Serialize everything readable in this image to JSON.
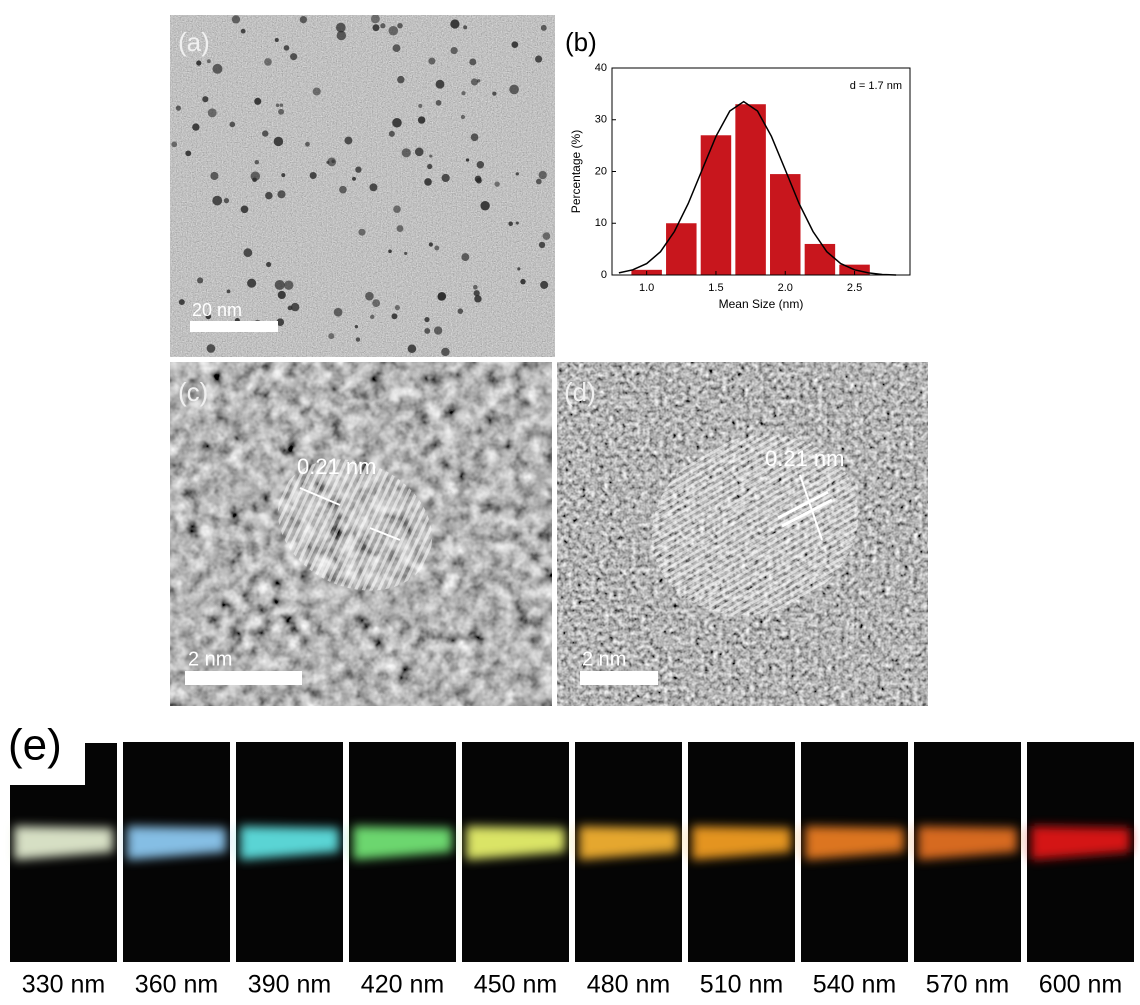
{
  "panels": {
    "a": {
      "label": "(a)",
      "scale_bar": "20 nm"
    },
    "c": {
      "label": "(c)",
      "spacing": "0.21 nm",
      "scale_bar": "2 nm"
    },
    "d": {
      "label": "(d)",
      "spacing": "0.21 nm",
      "scale_bar": "2 nm"
    },
    "e": {
      "label": "(e)",
      "strips": [
        {
          "label": "330 nm",
          "color": "#e2ebcf"
        },
        {
          "label": "360 nm",
          "color": "#8cc8f0"
        },
        {
          "label": "390 nm",
          "color": "#5fe0e0"
        },
        {
          "label": "420 nm",
          "color": "#72e274"
        },
        {
          "label": "450 nm",
          "color": "#e6f06c"
        },
        {
          "label": "480 nm",
          "color": "#f2b030"
        },
        {
          "label": "510 nm",
          "color": "#f09c22"
        },
        {
          "label": "540 nm",
          "color": "#e87c20"
        },
        {
          "label": "570 nm",
          "color": "#e27020"
        },
        {
          "label": "600 nm",
          "color": "#e01818"
        }
      ]
    }
  },
  "chart_data": {
    "type": "histogram",
    "title": "(b)",
    "annotation": "d = 1.7 nm",
    "x_label": "Mean Size (nm)",
    "y_label": "Percentage (%)",
    "bins": [
      0.875,
      1.125,
      1.375,
      1.625,
      1.875,
      2.125,
      2.375,
      2.625
    ],
    "values": [
      1,
      10,
      27,
      33,
      19.5,
      6,
      2
    ],
    "color": "#c8161d",
    "fit": {
      "x": [
        0.8,
        0.9,
        1.0,
        1.1,
        1.2,
        1.3,
        1.4,
        1.5,
        1.6,
        1.7,
        1.8,
        1.9,
        2.0,
        2.1,
        2.2,
        2.3,
        2.4,
        2.5,
        2.6,
        2.7,
        2.8
      ],
      "values": [
        0.4,
        1.0,
        2.2,
        4.5,
        8.4,
        13.8,
        20.3,
        26.8,
        31.7,
        33.5,
        31.7,
        26.8,
        20.3,
        13.8,
        8.4,
        4.5,
        2.2,
        1.0,
        0.4,
        0.1,
        0.0
      ],
      "color": "#000000"
    },
    "xlim": [
      0.75,
      2.9
    ],
    "ylim": [
      0,
      40
    ],
    "xticks": [
      {
        "value": 1,
        "label": "1.0"
      },
      {
        "value": 1.5,
        "label": "1.5"
      },
      {
        "value": 2,
        "label": "2.0"
      },
      {
        "value": 2.5,
        "label": "2.5"
      }
    ],
    "yticks": [
      0,
      10,
      20,
      30,
      40
    ]
  }
}
